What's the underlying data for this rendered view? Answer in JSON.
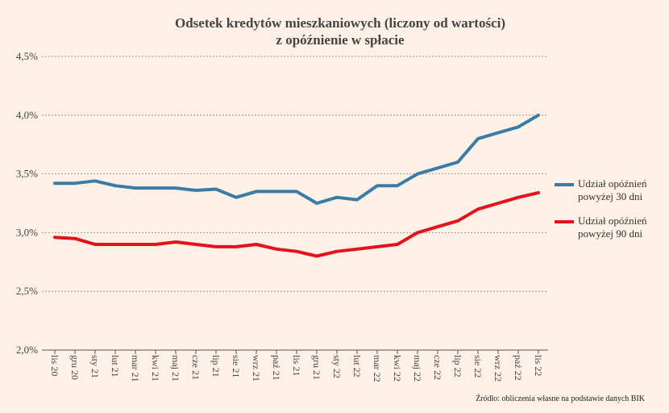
{
  "chart_data": {
    "type": "line",
    "title": [
      "Odsetek kredytów mieszkaniowych (liczony od wartości)",
      "z opóźnienie w spłacie"
    ],
    "categories": [
      "lis 20",
      "gru 20",
      "sty 21",
      "lut 21",
      "mar 21",
      "kwi 21",
      "maj 21",
      "cze 21",
      "lip 21",
      "sie 21",
      "wrz 21",
      "paź 21",
      "lis 21",
      "gru 21",
      "sty 22",
      "lut 22",
      "mar 22",
      "kwi 22",
      "maj 22",
      "cze 22",
      "lip 22",
      "sie 22",
      "wrz 22",
      "paź 22",
      "lis 22"
    ],
    "series": [
      {
        "name": "Udział opóźnień powyżej 30 dni",
        "color": "#3a7ca5",
        "values": [
          3.42,
          3.42,
          3.44,
          3.4,
          3.38,
          3.38,
          3.38,
          3.36,
          3.37,
          3.3,
          3.35,
          3.35,
          3.35,
          3.25,
          3.3,
          3.28,
          3.4,
          3.4,
          3.5,
          3.55,
          3.6,
          3.8,
          3.85,
          3.9,
          4.0
        ]
      },
      {
        "name": "Udział opóźnień powyżej 90 dni",
        "color": "#e3121b",
        "values": [
          2.96,
          2.95,
          2.9,
          2.9,
          2.9,
          2.9,
          2.92,
          2.9,
          2.88,
          2.88,
          2.9,
          2.86,
          2.84,
          2.8,
          2.84,
          2.86,
          2.88,
          2.9,
          3.0,
          3.05,
          3.1,
          3.2,
          3.25,
          3.3,
          3.34
        ]
      }
    ],
    "ylim": [
      2.0,
      4.5
    ],
    "yticks": [
      "2,0%",
      "2,5%",
      "3,0%",
      "3,5%",
      "4,0%",
      "4,5%"
    ],
    "ytick_values": [
      2.0,
      2.5,
      3.0,
      3.5,
      4.0,
      4.5
    ],
    "grid": true,
    "legend_placement": "right"
  },
  "legend": {
    "s30": [
      "Udział opóźnień",
      "powyżej 30 dni"
    ],
    "s90": [
      "Udział opóźnień",
      "powyżej 90 dni"
    ]
  },
  "source": "Źródło: obliczenia własne na podstawie danych BIK"
}
